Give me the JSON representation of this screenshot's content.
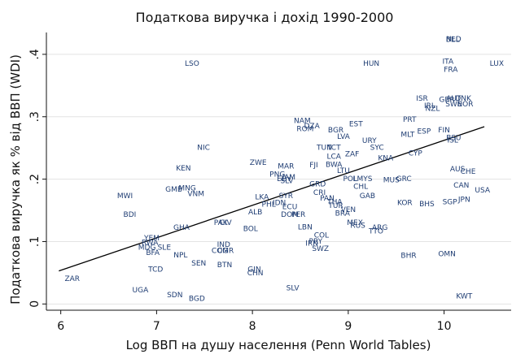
{
  "chart_data": {
    "type": "scatter",
    "title": "Податкова виручка і дохід 1990-2000",
    "xlabel": "Log ВВП на душу населення (Penn World Tables)",
    "ylabel": "Податкова виручка як % від ВВП (WDI)",
    "xlim": [
      5.85,
      10.7
    ],
    "ylim": [
      -0.01,
      0.435
    ],
    "xticks": [
      6,
      7,
      8,
      9,
      10
    ],
    "xtick_labels": [
      "6",
      "7",
      "8",
      "9",
      "10"
    ],
    "yticks": [
      0,
      0.1,
      0.2,
      0.3,
      0.4
    ],
    "ytick_labels": [
      "0",
      ".1",
      ".2",
      ".3",
      ".4"
    ],
    "grid": "horizontal",
    "fit_line": {
      "x": [
        5.98,
        10.42
      ],
      "y": [
        0.053,
        0.284
      ]
    },
    "points": [
      {
        "label": "BEL",
        "x": 10.09,
        "y": 0.423
      },
      {
        "label": "NLD",
        "x": 10.1,
        "y": 0.424
      },
      {
        "label": "LSO",
        "x": 7.37,
        "y": 0.385
      },
      {
        "label": "HUN",
        "x": 9.24,
        "y": 0.385
      },
      {
        "label": "ITA",
        "x": 10.04,
        "y": 0.388
      },
      {
        "label": "LUX",
        "x": 10.55,
        "y": 0.385
      },
      {
        "label": "FRA",
        "x": 10.07,
        "y": 0.375
      },
      {
        "label": "ISR",
        "x": 9.77,
        "y": 0.329
      },
      {
        "label": "GBR",
        "x": 10.03,
        "y": 0.327
      },
      {
        "label": "AUT",
        "x": 10.1,
        "y": 0.329
      },
      {
        "label": "DNK",
        "x": 10.2,
        "y": 0.329
      },
      {
        "label": "SWE",
        "x": 10.1,
        "y": 0.32
      },
      {
        "label": "NOR",
        "x": 10.22,
        "y": 0.32
      },
      {
        "label": "IRL",
        "x": 9.85,
        "y": 0.317
      },
      {
        "label": "NZL",
        "x": 9.88,
        "y": 0.313
      },
      {
        "label": "PRT",
        "x": 9.64,
        "y": 0.295
      },
      {
        "label": "NAM",
        "x": 8.52,
        "y": 0.293
      },
      {
        "label": "DZA",
        "x": 8.62,
        "y": 0.285
      },
      {
        "label": "EST",
        "x": 9.08,
        "y": 0.288
      },
      {
        "label": "ROM",
        "x": 8.55,
        "y": 0.28
      },
      {
        "label": "BGR",
        "x": 8.87,
        "y": 0.278
      },
      {
        "label": "ESP",
        "x": 9.79,
        "y": 0.276
      },
      {
        "label": "FIN",
        "x": 10.0,
        "y": 0.278
      },
      {
        "label": "MLT",
        "x": 9.62,
        "y": 0.271
      },
      {
        "label": "LVA",
        "x": 8.95,
        "y": 0.268
      },
      {
        "label": "BSU",
        "x": 10.1,
        "y": 0.266
      },
      {
        "label": "ISL",
        "x": 10.09,
        "y": 0.262
      },
      {
        "label": "URY",
        "x": 9.22,
        "y": 0.261
      },
      {
        "label": "NIC",
        "x": 7.49,
        "y": 0.25
      },
      {
        "label": "TUN",
        "x": 8.75,
        "y": 0.25
      },
      {
        "label": "TCT",
        "x": 8.85,
        "y": 0.25
      },
      {
        "label": "SYC",
        "x": 9.3,
        "y": 0.25
      },
      {
        "label": "ZAF",
        "x": 9.04,
        "y": 0.24
      },
      {
        "label": "CYP",
        "x": 9.7,
        "y": 0.241
      },
      {
        "label": "LCA",
        "x": 8.85,
        "y": 0.236
      },
      {
        "label": "KNA",
        "x": 9.39,
        "y": 0.233
      },
      {
        "label": "ZWE",
        "x": 8.06,
        "y": 0.226
      },
      {
        "label": "FJI",
        "x": 8.64,
        "y": 0.222
      },
      {
        "label": "BWA",
        "x": 8.85,
        "y": 0.223
      },
      {
        "label": "MAR",
        "x": 8.35,
        "y": 0.22
      },
      {
        "label": "KEN",
        "x": 7.28,
        "y": 0.217
      },
      {
        "label": "LTU",
        "x": 8.95,
        "y": 0.213
      },
      {
        "label": "AUS",
        "x": 10.14,
        "y": 0.216
      },
      {
        "label": "CHE",
        "x": 10.25,
        "y": 0.212
      },
      {
        "label": "PNG",
        "x": 8.26,
        "y": 0.207
      },
      {
        "label": "JAM",
        "x": 8.38,
        "y": 0.203
      },
      {
        "label": "SLV",
        "x": 8.36,
        "y": 0.197
      },
      {
        "label": "EGY",
        "x": 8.33,
        "y": 0.2
      },
      {
        "label": "POL",
        "x": 9.02,
        "y": 0.2
      },
      {
        "label": "LMYS",
        "x": 9.15,
        "y": 0.2
      },
      {
        "label": "MUS",
        "x": 9.45,
        "y": 0.198
      },
      {
        "label": "GRC",
        "x": 9.58,
        "y": 0.2
      },
      {
        "label": "GRD",
        "x": 8.68,
        "y": 0.192
      },
      {
        "label": "CHL",
        "x": 9.13,
        "y": 0.188
      },
      {
        "label": "CAN",
        "x": 10.18,
        "y": 0.19
      },
      {
        "label": "MNG",
        "x": 7.32,
        "y": 0.185
      },
      {
        "label": "GMB",
        "x": 7.18,
        "y": 0.183
      },
      {
        "label": "CRI",
        "x": 8.7,
        "y": 0.178
      },
      {
        "label": "USA",
        "x": 10.4,
        "y": 0.182
      },
      {
        "label": "VNM",
        "x": 7.41,
        "y": 0.176
      },
      {
        "label": "MWI",
        "x": 6.67,
        "y": 0.173
      },
      {
        "label": "LKA",
        "x": 8.1,
        "y": 0.171
      },
      {
        "label": "SYR",
        "x": 8.35,
        "y": 0.173
      },
      {
        "label": "PAN",
        "x": 8.78,
        "y": 0.169
      },
      {
        "label": "GAB",
        "x": 9.2,
        "y": 0.173
      },
      {
        "label": "JPN",
        "x": 10.21,
        "y": 0.167
      },
      {
        "label": "SGP",
        "x": 10.06,
        "y": 0.163
      },
      {
        "label": "PHL",
        "x": 8.17,
        "y": 0.159
      },
      {
        "label": "IDN",
        "x": 8.28,
        "y": 0.162
      },
      {
        "label": "THA",
        "x": 8.86,
        "y": 0.163
      },
      {
        "label": "KOR",
        "x": 9.59,
        "y": 0.162
      },
      {
        "label": "BHS",
        "x": 9.82,
        "y": 0.16
      },
      {
        "label": "ECU",
        "x": 8.39,
        "y": 0.155
      },
      {
        "label": "TUR",
        "x": 8.87,
        "y": 0.157
      },
      {
        "label": "VEN",
        "x": 9.0,
        "y": 0.151
      },
      {
        "label": "ALB",
        "x": 8.03,
        "y": 0.147
      },
      {
        "label": "BRA",
        "x": 8.94,
        "y": 0.145
      },
      {
        "label": "DOM",
        "x": 8.39,
        "y": 0.143
      },
      {
        "label": "PER",
        "x": 8.48,
        "y": 0.143
      },
      {
        "label": "BDI",
        "x": 6.72,
        "y": 0.143
      },
      {
        "label": "PAK",
        "x": 7.67,
        "y": 0.13
      },
      {
        "label": "CIV",
        "x": 7.72,
        "y": 0.13
      },
      {
        "label": "MEX",
        "x": 9.07,
        "y": 0.13
      },
      {
        "label": "RUS",
        "x": 9.1,
        "y": 0.125
      },
      {
        "label": "ARG",
        "x": 9.33,
        "y": 0.122
      },
      {
        "label": "GHA",
        "x": 7.26,
        "y": 0.122
      },
      {
        "label": "BOL",
        "x": 7.98,
        "y": 0.12
      },
      {
        "label": "LBN",
        "x": 8.55,
        "y": 0.123
      },
      {
        "label": "TTO",
        "x": 9.29,
        "y": 0.116
      },
      {
        "label": "COL",
        "x": 8.72,
        "y": 0.11
      },
      {
        "label": "YEM",
        "x": 6.95,
        "y": 0.105
      },
      {
        "label": "PRY",
        "x": 8.66,
        "y": 0.1
      },
      {
        "label": "IRN",
        "x": 8.62,
        "y": 0.097
      },
      {
        "label": "RWA",
        "x": 6.93,
        "y": 0.098
      },
      {
        "label": "IND",
        "x": 7.7,
        "y": 0.095
      },
      {
        "label": "SWZ",
        "x": 8.71,
        "y": 0.088
      },
      {
        "label": "MDG",
        "x": 6.9,
        "y": 0.09
      },
      {
        "label": "SLE",
        "x": 7.08,
        "y": 0.09
      },
      {
        "label": "COG",
        "x": 7.66,
        "y": 0.085
      },
      {
        "label": "CMR",
        "x": 7.72,
        "y": 0.085
      },
      {
        "label": "BFA",
        "x": 6.96,
        "y": 0.082
      },
      {
        "label": "NPL",
        "x": 7.25,
        "y": 0.078
      },
      {
        "label": "OMN",
        "x": 10.03,
        "y": 0.08
      },
      {
        "label": "BHR",
        "x": 9.63,
        "y": 0.077
      },
      {
        "label": "SEN",
        "x": 7.44,
        "y": 0.065
      },
      {
        "label": "BTN",
        "x": 7.71,
        "y": 0.062
      },
      {
        "label": "TCD",
        "x": 6.99,
        "y": 0.055
      },
      {
        "label": "GIN",
        "x": 8.02,
        "y": 0.055
      },
      {
        "label": "CHN",
        "x": 8.03,
        "y": 0.049
      },
      {
        "label": "ZAR",
        "x": 6.12,
        "y": 0.04
      },
      {
        "label": "SLV",
        "x": 8.42,
        "y": 0.025
      },
      {
        "label": "UGA",
        "x": 6.83,
        "y": 0.022
      },
      {
        "label": "SDN",
        "x": 7.19,
        "y": 0.014
      },
      {
        "label": "BGD",
        "x": 7.42,
        "y": 0.008
      },
      {
        "label": "KWT",
        "x": 10.21,
        "y": 0.012
      }
    ]
  }
}
